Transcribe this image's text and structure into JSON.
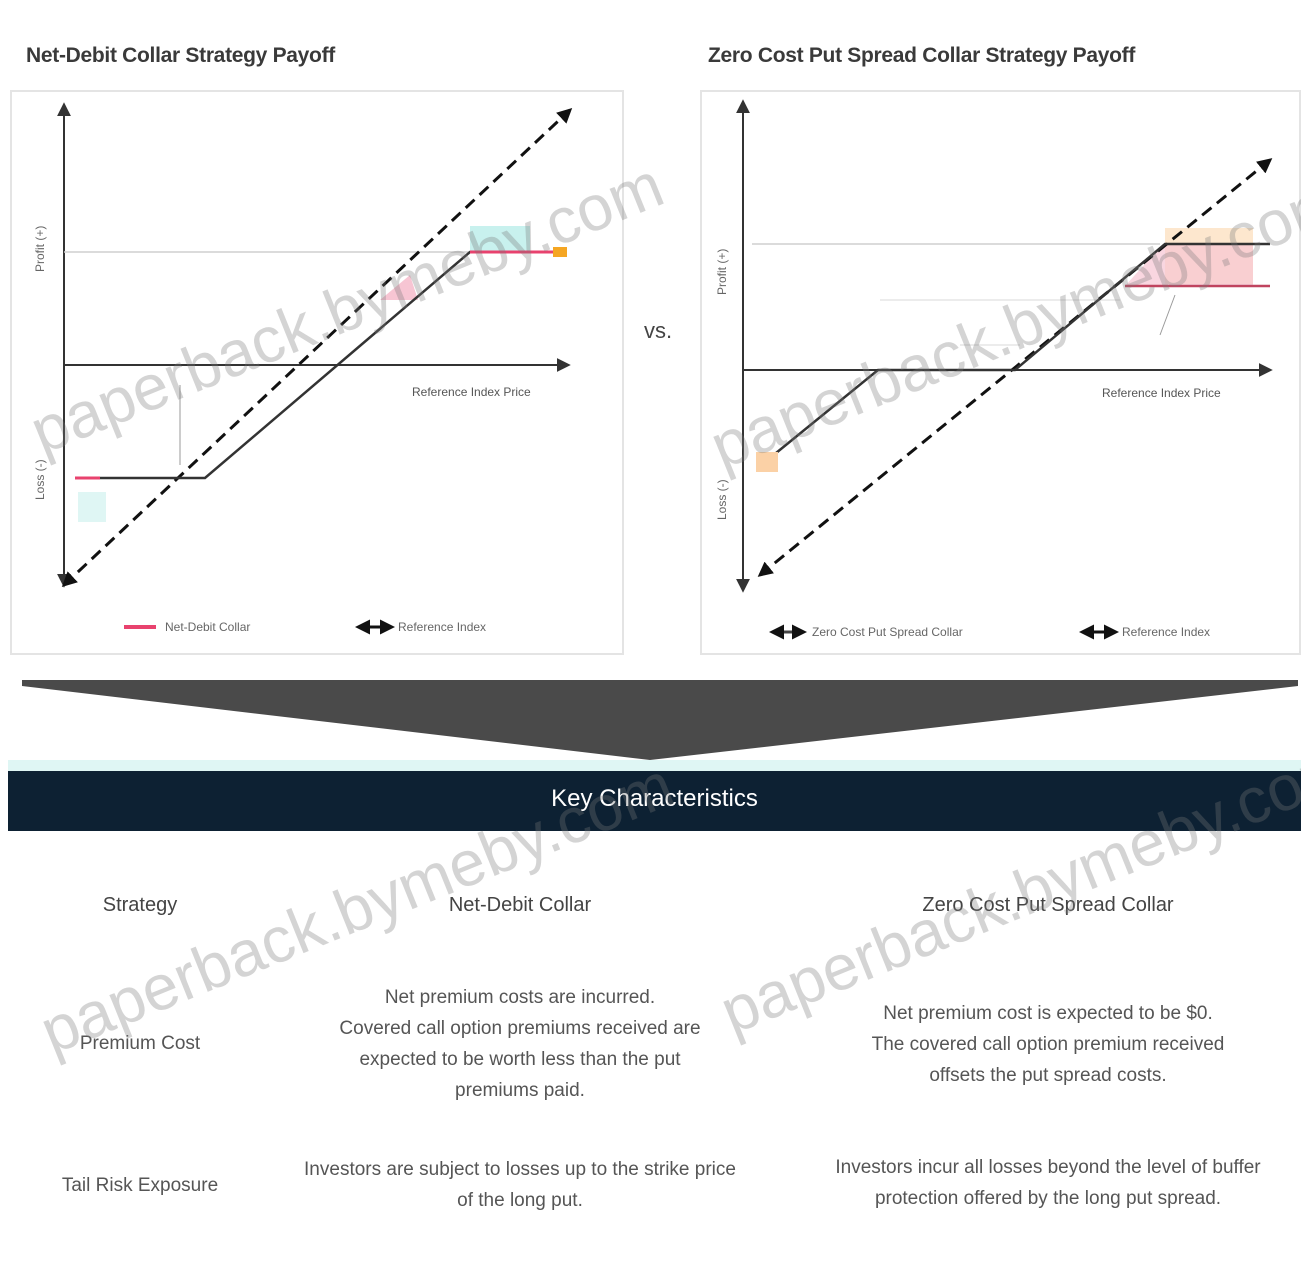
{
  "left_panel": {
    "title": "Net-Debit Collar Strategy Payoff",
    "y_upper": "Profit (+)",
    "y_lower": "Loss (-)",
    "x_label": "Reference Index Price",
    "legend": [
      "Net-Debit Collar",
      "Reference Index"
    ]
  },
  "right_panel": {
    "title": "Zero Cost Put Spread Collar Strategy Payoff",
    "y_upper": "Profit (+)",
    "y_lower": "Loss (-)",
    "x_label": "Reference Index Price",
    "legend": [
      "Zero Cost Put Spread Collar",
      "Reference Index"
    ]
  },
  "vs_label": "vs.",
  "band_title": "Key Characteristics",
  "table": {
    "headers": [
      "Strategy",
      "Net-Debit Collar",
      "Zero Cost Put Spread Collar"
    ],
    "rows": [
      {
        "label": "Premium Cost",
        "net_debit": [
          "Net premium costs are incurred.",
          "Covered call option premiums received are",
          "expected to be worth less than the put",
          "premiums paid."
        ],
        "zero_cost": [
          "Net premium cost is expected to be $0.",
          "The covered call option premium received",
          "offsets the put spread costs."
        ]
      },
      {
        "label": "Tail Risk Exposure",
        "net_debit": [
          "Investors are subject to losses up to the strike price",
          "of the long put."
        ],
        "zero_cost": [
          "Investors incur all losses beyond the level of buffer",
          "protection offered by the long put spread."
        ]
      }
    ]
  },
  "watermark": "paperback.bymeby.com",
  "colors": {
    "band": "#0d2133",
    "funnel": "#4a4a4a",
    "pink": "#e8426e",
    "orange": "#f5a623",
    "teal": "#c8f1ee"
  }
}
